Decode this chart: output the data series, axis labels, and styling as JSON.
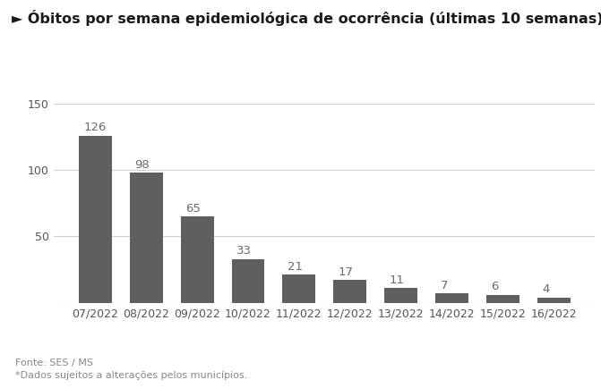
{
  "title": "► Óbitos por semana epidemiológica de ocorrência (últimas 10 semanas)",
  "categories": [
    "07/2022",
    "08/2022",
    "09/2022",
    "10/2022",
    "11/2022",
    "12/2022",
    "13/2022",
    "14/2022",
    "15/2022",
    "16/2022"
  ],
  "values": [
    126,
    98,
    65,
    33,
    21,
    17,
    11,
    7,
    6,
    4
  ],
  "bar_color": "#5f5f5f",
  "bg_color": "#ffffff",
  "ylim": [
    0,
    155
  ],
  "yticks": [
    0,
    50,
    100,
    150
  ],
  "footnote1": "Fonte: SES / MS",
  "footnote2": "*Dados sujeitos a alterações pelos municípios.",
  "title_fontsize": 11.5,
  "label_fontsize": 9.5,
  "tick_fontsize": 9,
  "footnote_fontsize": 8,
  "grid_color": "#d0d0d0",
  "label_color": "#6a6a6a",
  "tick_color": "#555555"
}
